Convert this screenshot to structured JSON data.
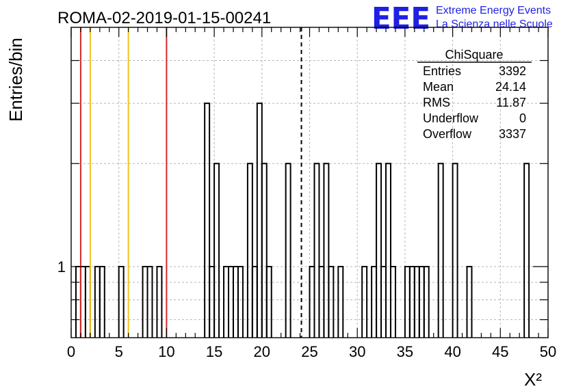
{
  "chart_data": {
    "type": "bar",
    "title": "ROMA-02-2019-01-15-00241",
    "xlabel": "X²",
    "ylabel": "Entries/bin",
    "xlim": [
      0,
      50
    ],
    "ylim": [
      0.62,
      5
    ],
    "yscale": "log",
    "bin_width": 0.5,
    "grid": true,
    "x_ticks": [
      "0",
      "5",
      "10",
      "15",
      "20",
      "25",
      "30",
      "35",
      "40",
      "45",
      "50"
    ],
    "y_ticks": [
      "1"
    ],
    "bins": [
      {
        "x": 0.5,
        "value": 1
      },
      {
        "x": 1.0,
        "value": 1
      },
      {
        "x": 1.5,
        "value": 1
      },
      {
        "x": 2.5,
        "value": 1
      },
      {
        "x": 3.0,
        "value": 1
      },
      {
        "x": 5.0,
        "value": 1
      },
      {
        "x": 7.5,
        "value": 1
      },
      {
        "x": 8.0,
        "value": 1
      },
      {
        "x": 9.0,
        "value": 1
      },
      {
        "x": 14.0,
        "value": 3
      },
      {
        "x": 14.5,
        "value": 1
      },
      {
        "x": 15.0,
        "value": 2
      },
      {
        "x": 16.0,
        "value": 1
      },
      {
        "x": 16.5,
        "value": 1
      },
      {
        "x": 17.0,
        "value": 1
      },
      {
        "x": 17.5,
        "value": 1
      },
      {
        "x": 18.5,
        "value": 2
      },
      {
        "x": 19.0,
        "value": 1
      },
      {
        "x": 19.5,
        "value": 3
      },
      {
        "x": 20.0,
        "value": 2
      },
      {
        "x": 20.5,
        "value": 1
      },
      {
        "x": 22.5,
        "value": 2
      },
      {
        "x": 25.0,
        "value": 1
      },
      {
        "x": 25.5,
        "value": 2
      },
      {
        "x": 26.0,
        "value": 1
      },
      {
        "x": 26.5,
        "value": 2
      },
      {
        "x": 27.0,
        "value": 1
      },
      {
        "x": 28.0,
        "value": 1
      },
      {
        "x": 30.5,
        "value": 1
      },
      {
        "x": 31.5,
        "value": 1
      },
      {
        "x": 32.0,
        "value": 2
      },
      {
        "x": 32.5,
        "value": 1
      },
      {
        "x": 33.0,
        "value": 2
      },
      {
        "x": 33.5,
        "value": 1
      },
      {
        "x": 35.0,
        "value": 1
      },
      {
        "x": 35.5,
        "value": 1
      },
      {
        "x": 36.0,
        "value": 1
      },
      {
        "x": 36.5,
        "value": 1
      },
      {
        "x": 37.0,
        "value": 1
      },
      {
        "x": 38.5,
        "value": 2
      },
      {
        "x": 40.0,
        "value": 2
      },
      {
        "x": 41.5,
        "value": 1
      },
      {
        "x": 47.5,
        "value": 2
      }
    ],
    "vlines": [
      {
        "x": 1.0,
        "color": "#d42a2a",
        "style": "solid"
      },
      {
        "x": 2.0,
        "color": "#f2c21b",
        "style": "solid"
      },
      {
        "x": 6.0,
        "color": "#f2c21b",
        "style": "solid"
      },
      {
        "x": 10.0,
        "color": "#d42a2a",
        "style": "solid"
      },
      {
        "x": 24.14,
        "color": "#000000",
        "style": "dashed"
      }
    ],
    "stats_box": {
      "title": "ChiSquare",
      "rows": [
        {
          "label": "Entries",
          "value": "3392"
        },
        {
          "label": "Mean",
          "value": "24.14"
        },
        {
          "label": "RMS",
          "value": "11.87"
        },
        {
          "label": "Underflow",
          "value": "0"
        },
        {
          "label": "Overflow",
          "value": "3337"
        }
      ]
    }
  },
  "logo": {
    "mark": "EEE",
    "line1": "Extreme Energy Events",
    "line2": "La Scienza nelle Scuole",
    "color": "#1f1fe6"
  }
}
